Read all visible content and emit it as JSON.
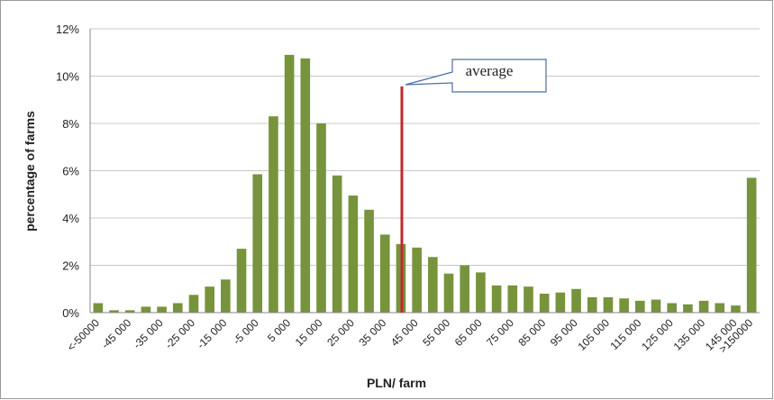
{
  "chart_data": {
    "type": "bar",
    "xlabel": "PLN/ farm",
    "ylabel": "percentage of farms",
    "annotation": "average",
    "categories": [
      "<-50000",
      null,
      "-45 000",
      null,
      "-35 000",
      null,
      "-25 000",
      null,
      "-15 000",
      null,
      "-5 000",
      null,
      "5 000",
      null,
      "15 000",
      null,
      "25 000",
      null,
      "35 000",
      null,
      "45 000",
      null,
      "55 000",
      null,
      "65 000",
      null,
      "75 000",
      null,
      "85 000",
      null,
      "95 000",
      null,
      "105 000",
      null,
      "115 000",
      null,
      "125 000",
      null,
      "135 000",
      null,
      "145 000",
      ">150000"
    ],
    "values": [
      0.4,
      0.1,
      0.1,
      0.25,
      0.25,
      0.4,
      0.75,
      1.1,
      1.4,
      2.7,
      5.85,
      8.3,
      10.9,
      10.75,
      8.0,
      5.8,
      4.95,
      4.35,
      3.3,
      2.9,
      2.75,
      2.35,
      1.65,
      2.0,
      1.7,
      1.15,
      1.15,
      1.1,
      0.8,
      0.85,
      1.0,
      0.65,
      0.65,
      0.6,
      0.5,
      0.55,
      0.4,
      0.35,
      0.5,
      0.4,
      0.3,
      5.7
    ],
    "color": "#77933c",
    "ylim": [
      0,
      12
    ],
    "yticks": [
      {
        "value": 0,
        "label": "0%"
      },
      {
        "value": 2,
        "label": "2%"
      },
      {
        "value": 4,
        "label": "4%"
      },
      {
        "value": 6,
        "label": "6%"
      },
      {
        "value": 8,
        "label": "8%"
      },
      {
        "value": 10,
        "label": "10%"
      },
      {
        "value": 12,
        "label": "12%"
      }
    ],
    "grid": true
  }
}
